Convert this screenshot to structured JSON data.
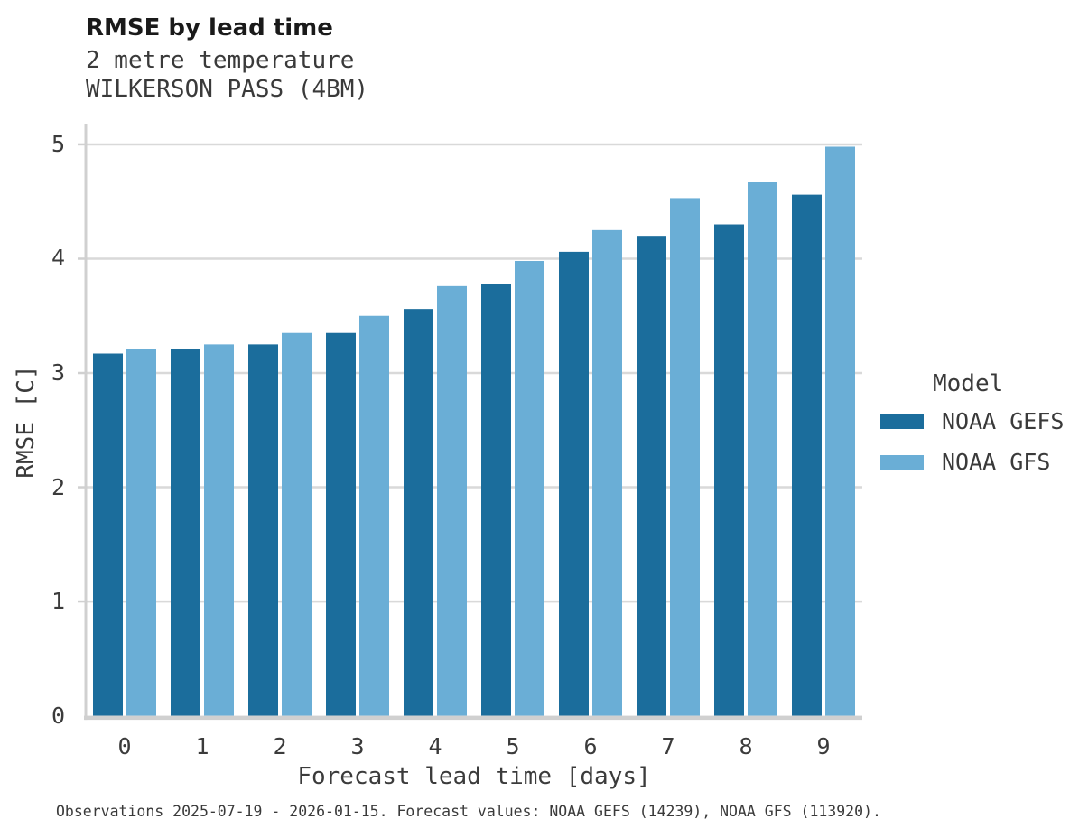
{
  "title": "RMSE by lead time",
  "subtitle_line1": "2 metre temperature",
  "subtitle_line2": "WILKERSON PASS (4BM)",
  "footer": "Observations 2025-07-19 - 2026-01-15. Forecast values: NOAA GEFS (14239), NOAA GFS (113920).",
  "colors": {
    "gefs_dark_blue": "#1b6d9c",
    "gfs_light_blue": "#6aaed6",
    "gridline": "#d9d9d9",
    "axis_spine": "#d0d0d0",
    "text": "#3b3b3b",
    "title_text": "#1a1a1a"
  },
  "legend": {
    "title": "Model",
    "items": [
      {
        "label": "NOAA GEFS",
        "color": "#1b6d9c"
      },
      {
        "label": "NOAA GFS",
        "color": "#6aaed6"
      }
    ]
  },
  "chart_data": {
    "type": "bar",
    "title": "RMSE by lead time",
    "subtitle": [
      "2 metre temperature",
      "WILKERSON PASS (4BM)"
    ],
    "xlabel": "Forecast lead time [days]",
    "ylabel": "RMSE [C]",
    "categories": [
      "0",
      "1",
      "2",
      "3",
      "4",
      "5",
      "6",
      "7",
      "8",
      "9"
    ],
    "series": [
      {
        "name": "NOAA GEFS",
        "color": "#1b6d9c",
        "values": [
          3.17,
          3.21,
          3.25,
          3.35,
          3.56,
          3.78,
          4.06,
          4.2,
          4.3,
          4.56
        ]
      },
      {
        "name": "NOAA GFS",
        "color": "#6aaed6",
        "values": [
          3.21,
          3.25,
          3.35,
          3.5,
          3.76,
          3.98,
          4.25,
          4.53,
          4.67,
          4.98
        ]
      }
    ],
    "ylim": [
      0,
      5
    ],
    "yticks": [
      0,
      1,
      2,
      3,
      4,
      5
    ],
    "grid": true,
    "legend_position": "right",
    "footnote": "Observations 2025-07-19 - 2026-01-15. Forecast values: NOAA GEFS (14239), NOAA GFS (113920)."
  }
}
